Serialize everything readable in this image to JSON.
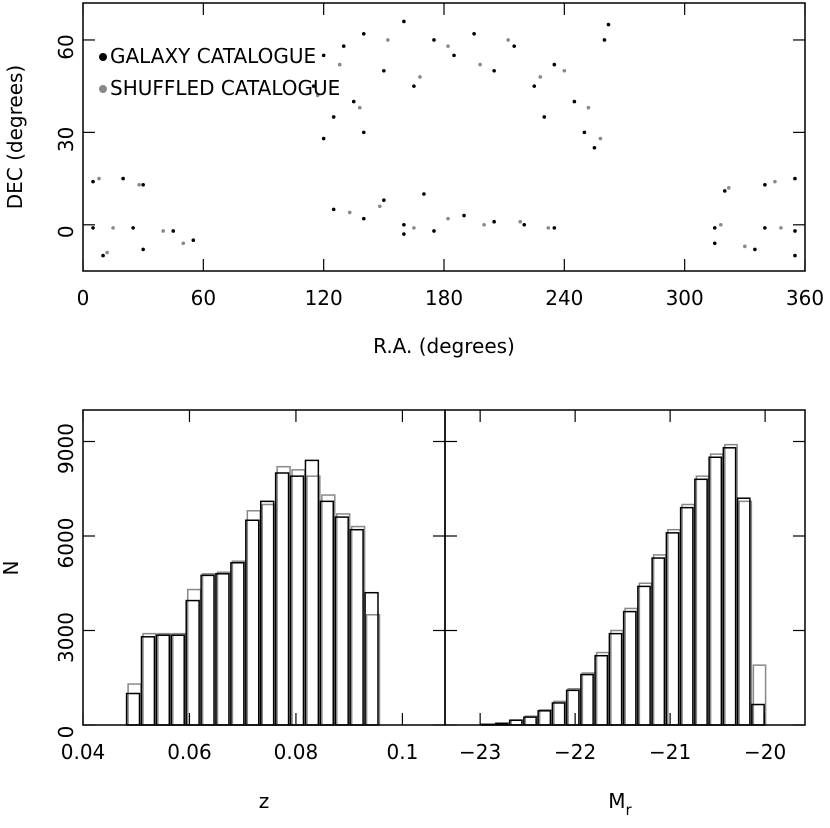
{
  "chart_data": [
    {
      "type": "scatter",
      "xlabel": "R.A. (degrees)",
      "ylabel": "DEC (degrees)",
      "xlim": [
        0,
        360
      ],
      "ylim": [
        -15,
        72
      ],
      "xticks": [
        0,
        60,
        120,
        180,
        240,
        300,
        360
      ],
      "yticks": [
        0,
        30,
        60
      ],
      "legend": "upper left",
      "series": [
        {
          "name": "SHUFFLED CATALOGUE",
          "color": "#888888",
          "x": [
            117,
            128,
            138,
            152,
            168,
            182,
            198,
            212,
            228,
            240,
            252,
            258,
            133,
            148,
            165,
            182,
            200,
            218,
            232,
            8,
            28,
            15,
            40,
            12,
            50,
            322,
            345,
            318,
            348,
            330
          ],
          "y": [
            42,
            52,
            38,
            60,
            48,
            58,
            52,
            60,
            48,
            50,
            38,
            28,
            4,
            6,
            -1,
            2,
            0,
            1,
            -1,
            15,
            13,
            -1,
            -2,
            -9,
            -6,
            12,
            14,
            0,
            -1,
            -7
          ]
        },
        {
          "name": "GALAXY CATALOGUE",
          "color": "#000000",
          "x": [
            115,
            120,
            125,
            130,
            135,
            140,
            150,
            160,
            165,
            175,
            185,
            195,
            205,
            215,
            225,
            235,
            245,
            250,
            255,
            260,
            262,
            120,
            140,
            230,
            125,
            140,
            150,
            160,
            175,
            190,
            205,
            220,
            235,
            170,
            160,
            5,
            20,
            30,
            5,
            25,
            45,
            10,
            30,
            55,
            320,
            340,
            355,
            315,
            340,
            355,
            315,
            335,
            355
          ],
          "y": [
            45,
            55,
            35,
            58,
            40,
            62,
            50,
            66,
            45,
            60,
            55,
            62,
            50,
            58,
            45,
            52,
            40,
            30,
            25,
            60,
            65,
            28,
            30,
            35,
            5,
            2,
            8,
            0,
            -2,
            3,
            1,
            0,
            -1,
            10,
            -3,
            14,
            15,
            13,
            -1,
            -1,
            -2,
            -10,
            -8,
            -5,
            11,
            13,
            15,
            -1,
            -1,
            -2,
            -6,
            -8,
            -10
          ]
        }
      ]
    },
    {
      "type": "histogram",
      "xlabel": "z",
      "ylabel": "N",
      "xlim": [
        0.04,
        0.108
      ],
      "ylim": [
        0,
        10000
      ],
      "xticks": [
        0.04,
        0.06,
        0.08,
        0.1
      ],
      "yticks": [
        0,
        3000,
        6000,
        9000
      ],
      "bins": [
        0.048,
        0.0508,
        0.0536,
        0.0564,
        0.0592,
        0.062,
        0.0648,
        0.0676,
        0.0704,
        0.0732,
        0.076,
        0.0788,
        0.0816,
        0.0844,
        0.0872,
        0.09,
        0.0928,
        0.0956
      ],
      "series": [
        {
          "name": "SHUFFLED CATALOGUE",
          "color": "#888888",
          "values": [
            1300,
            2900,
            2900,
            2900,
            4300,
            4800,
            4850,
            5200,
            6800,
            7000,
            8200,
            8100,
            7900,
            7300,
            6700,
            6300,
            3500
          ]
        },
        {
          "name": "GALAXY CATALOGUE",
          "color": "#000000",
          "values": [
            1000,
            2800,
            2850,
            2850,
            3950,
            4750,
            4800,
            5150,
            6500,
            7100,
            8000,
            7900,
            8400,
            7100,
            6600,
            6200,
            4200
          ]
        }
      ]
    },
    {
      "type": "histogram",
      "xlabel": "M",
      "xlabel_subscript": "r",
      "xlim": [
        -23.37,
        -19.58
      ],
      "ylim": [
        0,
        10000
      ],
      "xticks": [
        {
          "value": -23,
          "label": "−23"
        },
        {
          "value": -22,
          "label": "−22"
        },
        {
          "value": -21,
          "label": "−21"
        },
        {
          "value": -20,
          "label": "−20"
        }
      ],
      "yticks": [
        0,
        3000,
        6000,
        9000
      ],
      "bins": [
        -23,
        -22.85,
        -22.7,
        -22.55,
        -22.4,
        -22.25,
        -22.1,
        -21.95,
        -21.8,
        -21.65,
        -21.5,
        -21.35,
        -21.2,
        -21.05,
        -20.9,
        -20.75,
        -20.6,
        -20.45,
        -20.3,
        -20.15,
        -20
      ],
      "series": [
        {
          "name": "SHUFFLED CATALOGUE",
          "color": "#888888",
          "values": [
            20,
            60,
            160,
            280,
            480,
            750,
            1150,
            1650,
            2300,
            3000,
            3700,
            4500,
            5400,
            6200,
            7000,
            7900,
            8600,
            8900,
            7100,
            1900
          ]
        },
        {
          "name": "GALAXY CATALOGUE",
          "color": "#000000",
          "values": [
            20,
            50,
            150,
            250,
            450,
            700,
            1100,
            1600,
            2200,
            2900,
            3600,
            4400,
            5300,
            6100,
            6900,
            7800,
            8500,
            8800,
            7200,
            650
          ]
        }
      ]
    }
  ]
}
